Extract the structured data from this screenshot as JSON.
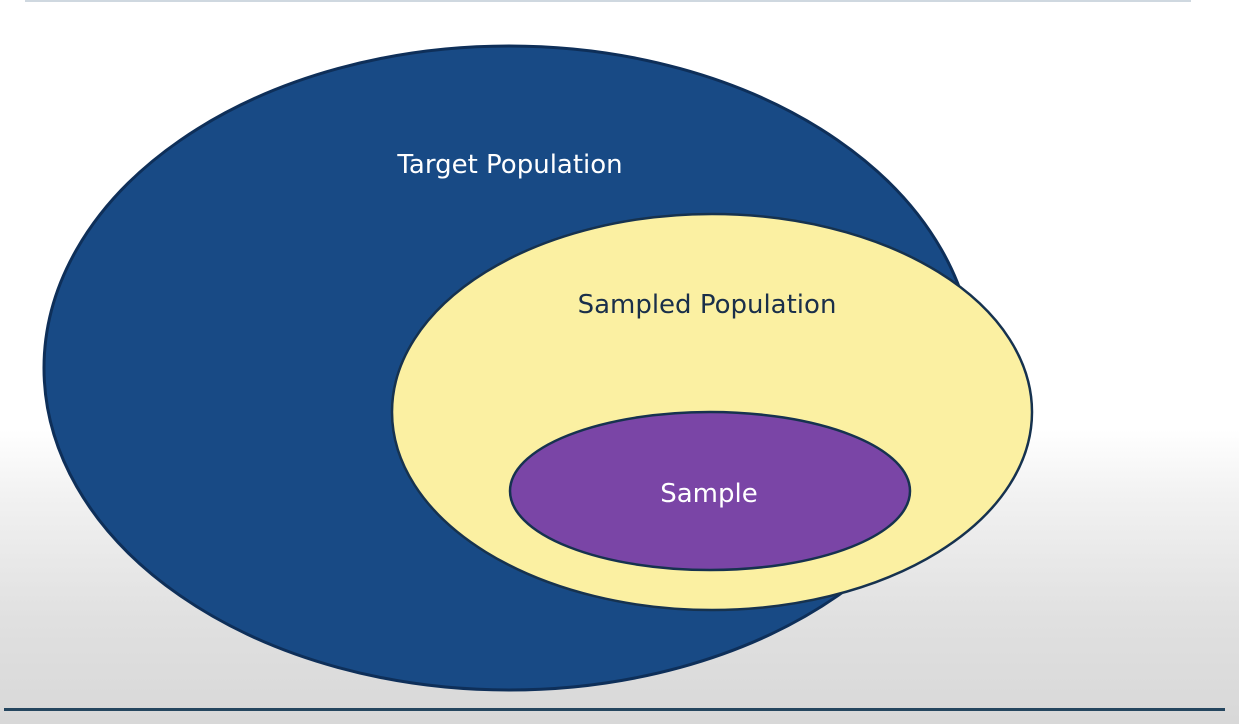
{
  "diagram": {
    "target_population": {
      "label": "Target Population",
      "fill": "#184a85",
      "stroke": "#0e2f59"
    },
    "sampled_population": {
      "label": "Sampled Population",
      "fill": "#fbf0a2",
      "stroke": "#16324f"
    },
    "sample": {
      "label": "Sample",
      "fill": "#7a45a6",
      "stroke": "#16324f"
    },
    "text_light": "#ffffff",
    "text_dark": "#1a2f4a"
  }
}
